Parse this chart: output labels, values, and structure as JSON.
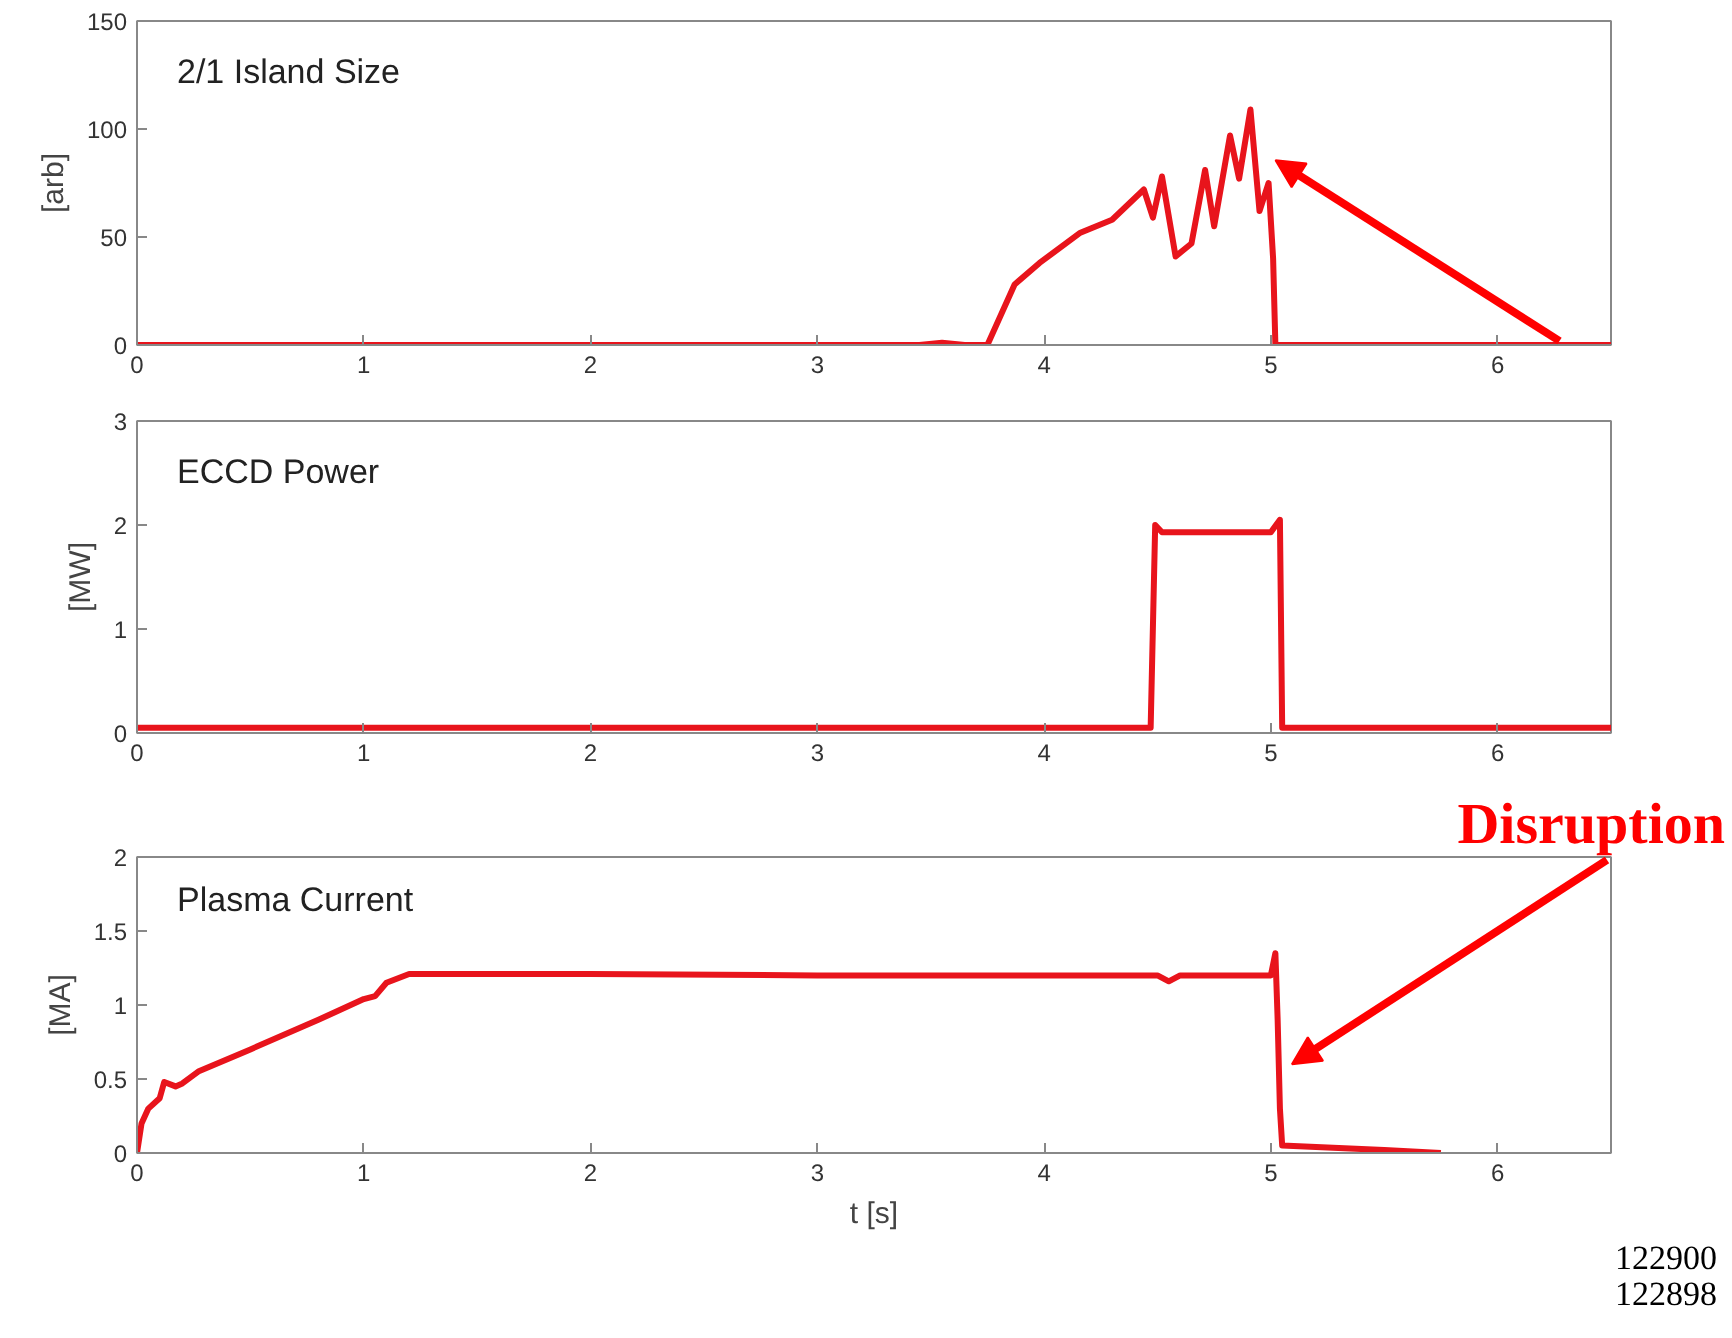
{
  "chart_data": [
    {
      "type": "line",
      "title": "2/1 Island Size",
      "ylabel": "[arb]",
      "xlim": [
        0,
        6.5
      ],
      "xticks": [
        0,
        1,
        2,
        3,
        4,
        5,
        6
      ],
      "ylim": [
        0,
        150
      ],
      "yticks": [
        0,
        50,
        100,
        150
      ],
      "grid": false,
      "series": [
        {
          "color": "#e8141c",
          "x": [
            0,
            3.45,
            3.55,
            3.65,
            3.75,
            3.87,
            3.98,
            4.16,
            4.3,
            4.44,
            4.48,
            4.52,
            4.58,
            4.65,
            4.71,
            4.75,
            4.82,
            4.86,
            4.91,
            4.95,
            4.99,
            5.01,
            5.02,
            6.5
          ],
          "values": [
            0,
            0,
            1,
            0,
            0,
            28,
            38,
            52,
            58,
            72,
            59,
            78,
            41,
            47,
            81,
            55,
            97,
            77,
            109,
            62,
            75,
            40,
            0,
            0
          ]
        }
      ]
    },
    {
      "type": "line",
      "title": "ECCD Power",
      "ylabel": "[MW]",
      "xlim": [
        0,
        6.5
      ],
      "xticks": [
        0,
        1,
        2,
        3,
        4,
        5,
        6
      ],
      "ylim": [
        0,
        3
      ],
      "yticks": [
        0,
        1,
        2,
        3
      ],
      "grid": false,
      "series": [
        {
          "color": "#e8141c",
          "x": [
            0,
            4.47,
            4.49,
            4.52,
            5.0,
            5.04,
            5.05,
            6.5
          ],
          "values": [
            0.05,
            0.05,
            2.0,
            1.93,
            1.93,
            2.05,
            0.05,
            0.05
          ]
        }
      ]
    },
    {
      "type": "line",
      "title": "Plasma Current",
      "ylabel": "[MA]",
      "xlabel": "t [s]",
      "xlim": [
        0,
        6.5
      ],
      "xticks": [
        0,
        1,
        2,
        3,
        4,
        5,
        6
      ],
      "ylim": [
        0,
        2
      ],
      "yticks": [
        0,
        {
          "value": 0.5,
          "label": "0.5"
        },
        1,
        {
          "value": 1.5,
          "label": "1.5"
        },
        2
      ],
      "grid": false,
      "annotations": [
        "Disruption",
        "122900",
        "122898"
      ],
      "series": [
        {
          "color": "#e8141c",
          "x": [
            0,
            0.02,
            0.05,
            0.1,
            0.12,
            0.17,
            0.2,
            0.27,
            0.5,
            0.8,
            1.0,
            1.05,
            1.1,
            1.2,
            2,
            3,
            4,
            4.5,
            4.55,
            4.6,
            5.0,
            5.02,
            5.03,
            5.04,
            5.05,
            5.5,
            5.75
          ],
          "values": [
            0,
            0.2,
            0.3,
            0.37,
            0.48,
            0.45,
            0.47,
            0.55,
            0.7,
            0.9,
            1.04,
            1.06,
            1.15,
            1.21,
            1.21,
            1.2,
            1.2,
            1.2,
            1.16,
            1.2,
            1.2,
            1.35,
            0.9,
            0.3,
            0.05,
            0.02,
            0
          ]
        }
      ]
    }
  ]
}
